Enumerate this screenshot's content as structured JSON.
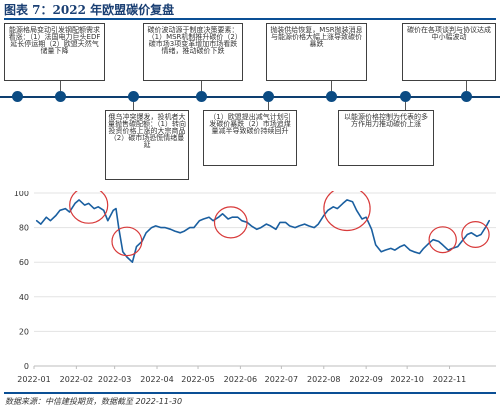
{
  "figure": {
    "title": "图表 7：2022 年欧盟碳价复盘",
    "source": "数据来源：中信建投期货，数据截至 2022-11-30"
  },
  "timeline": {
    "events": [
      {
        "position": "top",
        "text": "能源格局变动引发钢配额需求看涨：（1）法国电力巨头EDF延长停运期（2）欧盟天然气储量下降"
      },
      {
        "position": "bottom",
        "text": "俄乌冲突爆发，投机者大量抛售碳配额：（1）转向投资价格上涨的大宗商品（2）碳市场恐慌情绪蔓延"
      },
      {
        "position": "top",
        "text": "碳价波动源于制度决策要素：（1）MSR机制推升碳价（2）碳市场3项变革增加市场看跌情绪，推动碳价下跌"
      },
      {
        "position": "bottom",
        "text": "（1）欧盟提出减气计划引发碳价暴跌（2）市场追煤量减半导致碳价持续回升"
      },
      {
        "position": "top",
        "text": "抛装供给恢复，MSR抛装消息与能源价格大幅上涨导致碳价暴跌"
      },
      {
        "position": "bottom",
        "text": "以能源价格控制为代表的多方作用力推动碳价上涨"
      },
      {
        "position": "top",
        "text": "碳价在各项谈判与协议达成中小幅波动"
      }
    ]
  },
  "chart_data": {
    "type": "line",
    "title": "",
    "xlabel": "",
    "ylabel": "",
    "xlim": [
      "2022-01",
      "2022-12"
    ],
    "ylim": [
      0,
      100
    ],
    "yticks": [
      0,
      20,
      40,
      60,
      80,
      100
    ],
    "xticks": [
      "2022-01",
      "2022-02",
      "2022-03",
      "2022-04",
      "2022-05",
      "2022-06",
      "2022-07",
      "2022-08",
      "2022-09",
      "2022-10",
      "2022-11"
    ],
    "grid": true,
    "series": [
      {
        "color": "#1a5fa0",
        "x": [
          "2022-01-03",
          "2022-01-06",
          "2022-01-10",
          "2022-01-13",
          "2022-01-17",
          "2022-01-20",
          "2022-01-24",
          "2022-01-27",
          "2022-01-31",
          "2022-02-03",
          "2022-02-07",
          "2022-02-10",
          "2022-02-14",
          "2022-02-17",
          "2022-02-21",
          "2022-02-24",
          "2022-02-28",
          "2022-03-02",
          "2022-03-04",
          "2022-03-07",
          "2022-03-10",
          "2022-03-14",
          "2022-03-17",
          "2022-03-21",
          "2022-03-24",
          "2022-03-28",
          "2022-03-31",
          "2022-04-04",
          "2022-04-07",
          "2022-04-11",
          "2022-04-14",
          "2022-04-18",
          "2022-04-21",
          "2022-04-25",
          "2022-04-28",
          "2022-05-02",
          "2022-05-05",
          "2022-05-09",
          "2022-05-12",
          "2022-05-16",
          "2022-05-19",
          "2022-05-23",
          "2022-05-26",
          "2022-05-30",
          "2022-06-02",
          "2022-06-06",
          "2022-06-09",
          "2022-06-13",
          "2022-06-16",
          "2022-06-20",
          "2022-06-23",
          "2022-06-27",
          "2022-06-30",
          "2022-07-04",
          "2022-07-07",
          "2022-07-11",
          "2022-07-14",
          "2022-07-18",
          "2022-07-21",
          "2022-07-25",
          "2022-07-28",
          "2022-08-01",
          "2022-08-04",
          "2022-08-08",
          "2022-08-11",
          "2022-08-15",
          "2022-08-18",
          "2022-08-22",
          "2022-08-25",
          "2022-08-29",
          "2022-09-01",
          "2022-09-05",
          "2022-09-08",
          "2022-09-12",
          "2022-09-15",
          "2022-09-19",
          "2022-09-22",
          "2022-09-26",
          "2022-09-29",
          "2022-10-03",
          "2022-10-06",
          "2022-10-10",
          "2022-10-13",
          "2022-10-17",
          "2022-10-20",
          "2022-10-24",
          "2022-10-27",
          "2022-10-31",
          "2022-11-03",
          "2022-11-07",
          "2022-11-10",
          "2022-11-14",
          "2022-11-17",
          "2022-11-21",
          "2022-11-24",
          "2022-11-28",
          "2022-11-30"
        ],
        "values": [
          84,
          82,
          86,
          84,
          87,
          90,
          91,
          89,
          94,
          96,
          93,
          94,
          91,
          92,
          90,
          84,
          90,
          91,
          80,
          66,
          63,
          60,
          69,
          72,
          77,
          80,
          81,
          80,
          80,
          79,
          78,
          77,
          78,
          80,
          80,
          84,
          85,
          86,
          84,
          86,
          88,
          85,
          86,
          86,
          84,
          83,
          81,
          79,
          80,
          82,
          81,
          79,
          83,
          83,
          81,
          80,
          81,
          82,
          81,
          80,
          82,
          87,
          90,
          92,
          91,
          94,
          96,
          95,
          90,
          85,
          86,
          79,
          70,
          66,
          67,
          68,
          67,
          69,
          70,
          67,
          66,
          65,
          68,
          71,
          73,
          72,
          70,
          67,
          68,
          69,
          72,
          76,
          77,
          75,
          76,
          81,
          84
        ]
      }
    ],
    "annotations": [
      {
        "type": "circle",
        "color": "#d83a3a",
        "center": [
          "2022-02-10",
          93
        ],
        "radius_days": 14
      },
      {
        "type": "circle",
        "color": "#d83a3a",
        "center": [
          "2022-03-10",
          72
        ],
        "radius_days": 11
      },
      {
        "type": "circle",
        "color": "#d83a3a",
        "center": [
          "2022-05-25",
          83
        ],
        "radius_days": 12
      },
      {
        "type": "circle",
        "color": "#d83a3a",
        "center": [
          "2022-08-18",
          91
        ],
        "radius_days": 17
      },
      {
        "type": "circle",
        "color": "#d83a3a",
        "center": [
          "2022-10-27",
          73
        ],
        "radius_days": 10
      },
      {
        "type": "circle",
        "color": "#d83a3a",
        "center": [
          "2022-11-20",
          76
        ],
        "radius_days": 10
      }
    ]
  }
}
